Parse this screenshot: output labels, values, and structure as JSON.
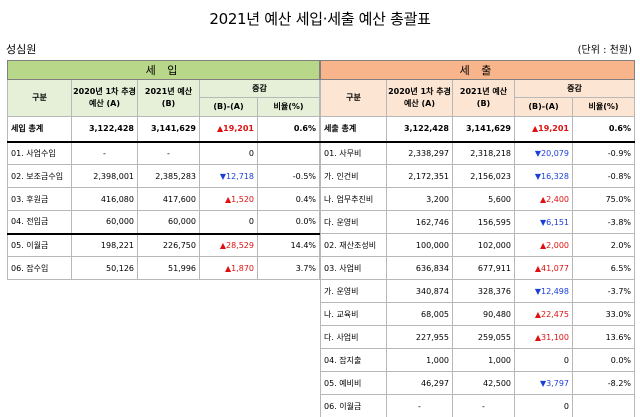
{
  "title": "2021년 예산 세입·세출 예산 총괄표",
  "org": "성심원",
  "unit": "(단위 : 천원)",
  "headers": {
    "category": "구분",
    "prev": "2020년 1차 추경 예산 (A)",
    "curr": "2021년 예산 (B)",
    "change": "증감",
    "diff": "(B)-(A)",
    "ratio": "비율(%)"
  },
  "income": {
    "banner": "세 입",
    "rows": [
      {
        "name": "세입 총계",
        "a": "3,122,428",
        "b": "3,141,629",
        "diff": "▲19,201",
        "dir": "up",
        "ratio": "0.6%"
      },
      {
        "name": "01. 사업수입",
        "a": "-",
        "b": "-",
        "diff": "0",
        "dir": "",
        "ratio": ""
      },
      {
        "name": "02. 보조금수입",
        "a": "2,398,001",
        "b": "2,385,283",
        "diff": "▼12,718",
        "dir": "down",
        "ratio": "-0.5%"
      },
      {
        "name": "03. 후원금",
        "a": "416,080",
        "b": "417,600",
        "diff": "▲1,520",
        "dir": "up",
        "ratio": "0.4%"
      },
      {
        "name": "04. 전입금",
        "a": "60,000",
        "b": "60,000",
        "diff": "0",
        "dir": "",
        "ratio": "0.0%"
      },
      {
        "name": "05. 이월금",
        "a": "198,221",
        "b": "226,750",
        "diff": "▲28,529",
        "dir": "up",
        "ratio": "14.4%"
      },
      {
        "name": "06. 잡수입",
        "a": "50,126",
        "b": "51,996",
        "diff": "▲1,870",
        "dir": "up",
        "ratio": "3.7%"
      }
    ]
  },
  "expense": {
    "banner": "세 출",
    "rows": [
      {
        "name": "세출 총계",
        "a": "3,122,428",
        "b": "3,141,629",
        "diff": "▲19,201",
        "dir": "up",
        "ratio": "0.6%"
      },
      {
        "name": "01. 사무비",
        "a": "2,338,297",
        "b": "2,318,218",
        "diff": "▼20,079",
        "dir": "down",
        "ratio": "-0.9%"
      },
      {
        "name": "가. 인건비",
        "a": "2,172,351",
        "b": "2,156,023",
        "diff": "▼16,328",
        "dir": "down",
        "ratio": "-0.8%"
      },
      {
        "name": "나. 업무추진비",
        "a": "3,200",
        "b": "5,600",
        "diff": "▲2,400",
        "dir": "up",
        "ratio": "75.0%"
      },
      {
        "name": "다. 운영비",
        "a": "162,746",
        "b": "156,595",
        "diff": "▼6,151",
        "dir": "down",
        "ratio": "-3.8%"
      },
      {
        "name": "02. 재산조성비",
        "a": "100,000",
        "b": "102,000",
        "diff": "▲2,000",
        "dir": "up",
        "ratio": "2.0%"
      },
      {
        "name": "03. 사업비",
        "a": "636,834",
        "b": "677,911",
        "diff": "▲41,077",
        "dir": "up",
        "ratio": "6.5%"
      },
      {
        "name": "가. 운영비",
        "a": "340,874",
        "b": "328,376",
        "diff": "▼12,498",
        "dir": "down",
        "ratio": "-3.7%"
      },
      {
        "name": "나. 교육비",
        "a": "68,005",
        "b": "90,480",
        "diff": "▲22,475",
        "dir": "up",
        "ratio": "33.0%"
      },
      {
        "name": "다. 사업비",
        "a": "227,955",
        "b": "259,055",
        "diff": "▲31,100",
        "dir": "up",
        "ratio": "13.6%"
      },
      {
        "name": "04. 잡지출",
        "a": "1,000",
        "b": "1,000",
        "diff": "0",
        "dir": "",
        "ratio": "0.0%"
      },
      {
        "name": "05. 예비비",
        "a": "46,297",
        "b": "42,500",
        "diff": "▼3,797",
        "dir": "down",
        "ratio": "-8.2%"
      },
      {
        "name": "06. 이월금",
        "a": "-",
        "b": "-",
        "diff": "0",
        "dir": "",
        "ratio": ""
      }
    ]
  }
}
